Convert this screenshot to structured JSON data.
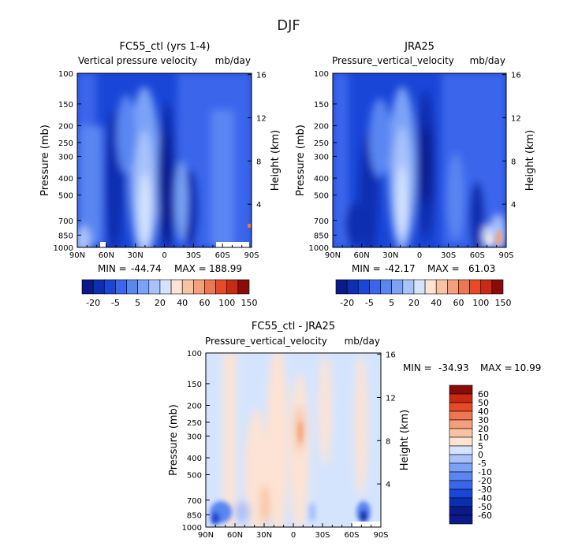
{
  "figure_title": "DJF",
  "colors": {
    "abs_palette": [
      "#0a1a8a",
      "#0b2fb0",
      "#1a46d8",
      "#3b66ec",
      "#5a86f2",
      "#7aa3f6",
      "#a9c3fa",
      "#d5e4fd",
      "#fde3d4",
      "#f9c3a3",
      "#f4a07d",
      "#ee7650",
      "#e64a26",
      "#c92a12",
      "#8a0c06"
    ],
    "diff_palette": [
      "#0a1a8a",
      "#0b2fb0",
      "#1a46d8",
      "#3b66ec",
      "#5a86f2",
      "#7aa3f6",
      "#a9c3fa",
      "#d5e4fd",
      "#fde3d4",
      "#f9c3a3",
      "#f4a07d",
      "#ee7650",
      "#e64a26",
      "#c92a12",
      "#8a0c06"
    ]
  },
  "chart_data": [
    {
      "type": "heatmap",
      "title": "FC55_ctl (yrs 1-4)",
      "subtitle_left": "Vertical pressure velocity",
      "subtitle_right": "mb/day",
      "xlabel": "",
      "ylabel": "Pressure (mb)",
      "y2label": "Height (km)",
      "x_ticks": [
        "90N",
        "60N",
        "30N",
        "0",
        "30S",
        "60S",
        "90S"
      ],
      "y_ticks": [
        "100",
        "150",
        "200",
        "250",
        "300",
        "400",
        "500",
        "700",
        "850",
        "1000"
      ],
      "y2_ticks": [
        "16",
        "12",
        "8",
        "4"
      ],
      "stats": {
        "min_label": "MIN =",
        "min": "-44.74",
        "max_label": "MAX =",
        "max": "188.99"
      },
      "colorbar": {
        "orientation": "horizontal",
        "levels": [
          "-20",
          "-5",
          "5",
          "20",
          "40",
          "60",
          "100",
          "150"
        ]
      }
    },
    {
      "type": "heatmap",
      "title": "JRA25",
      "subtitle_left": "Pressure_vertical_velocity",
      "subtitle_right": "mb/day",
      "xlabel": "",
      "ylabel": "Pressure (mb)",
      "y2label": "Height (km)",
      "x_ticks": [
        "90N",
        "60N",
        "30N",
        "0",
        "30S",
        "60S",
        "90S"
      ],
      "y_ticks": [
        "100",
        "150",
        "200",
        "250",
        "300",
        "400",
        "500",
        "700",
        "850",
        "1000"
      ],
      "y2_ticks": [
        "16",
        "12",
        "8",
        "4"
      ],
      "stats": {
        "min_label": "MIN =",
        "min": "-42.17",
        "max_label": "MAX =",
        "max": "61.03"
      },
      "colorbar": {
        "orientation": "horizontal",
        "levels": [
          "-20",
          "-5",
          "5",
          "20",
          "40",
          "60",
          "100",
          "150"
        ]
      }
    },
    {
      "type": "heatmap",
      "title": "FC55_ctl - JRA25",
      "subtitle_left": "Pressure_vertical_velocity",
      "subtitle_right": "mb/day",
      "xlabel": "",
      "ylabel": "Pressure (mb)",
      "y2label": "Height (km)",
      "x_ticks": [
        "90N",
        "60N",
        "30N",
        "0",
        "30S",
        "60S",
        "90S"
      ],
      "y_ticks": [
        "100",
        "150",
        "200",
        "250",
        "300",
        "400",
        "500",
        "700",
        "850",
        "1000"
      ],
      "y2_ticks": [
        "16",
        "12",
        "8",
        "4"
      ],
      "stats": {
        "min_label": "MIN =",
        "min": "-34.93",
        "max_label": "MAX =",
        "max": "10.99"
      },
      "colorbar": {
        "orientation": "vertical",
        "levels": [
          "60",
          "50",
          "40",
          "30",
          "20",
          "10",
          "5",
          "0",
          "-5",
          "-10",
          "-20",
          "-30",
          "-40",
          "-50",
          "-60"
        ]
      }
    }
  ]
}
